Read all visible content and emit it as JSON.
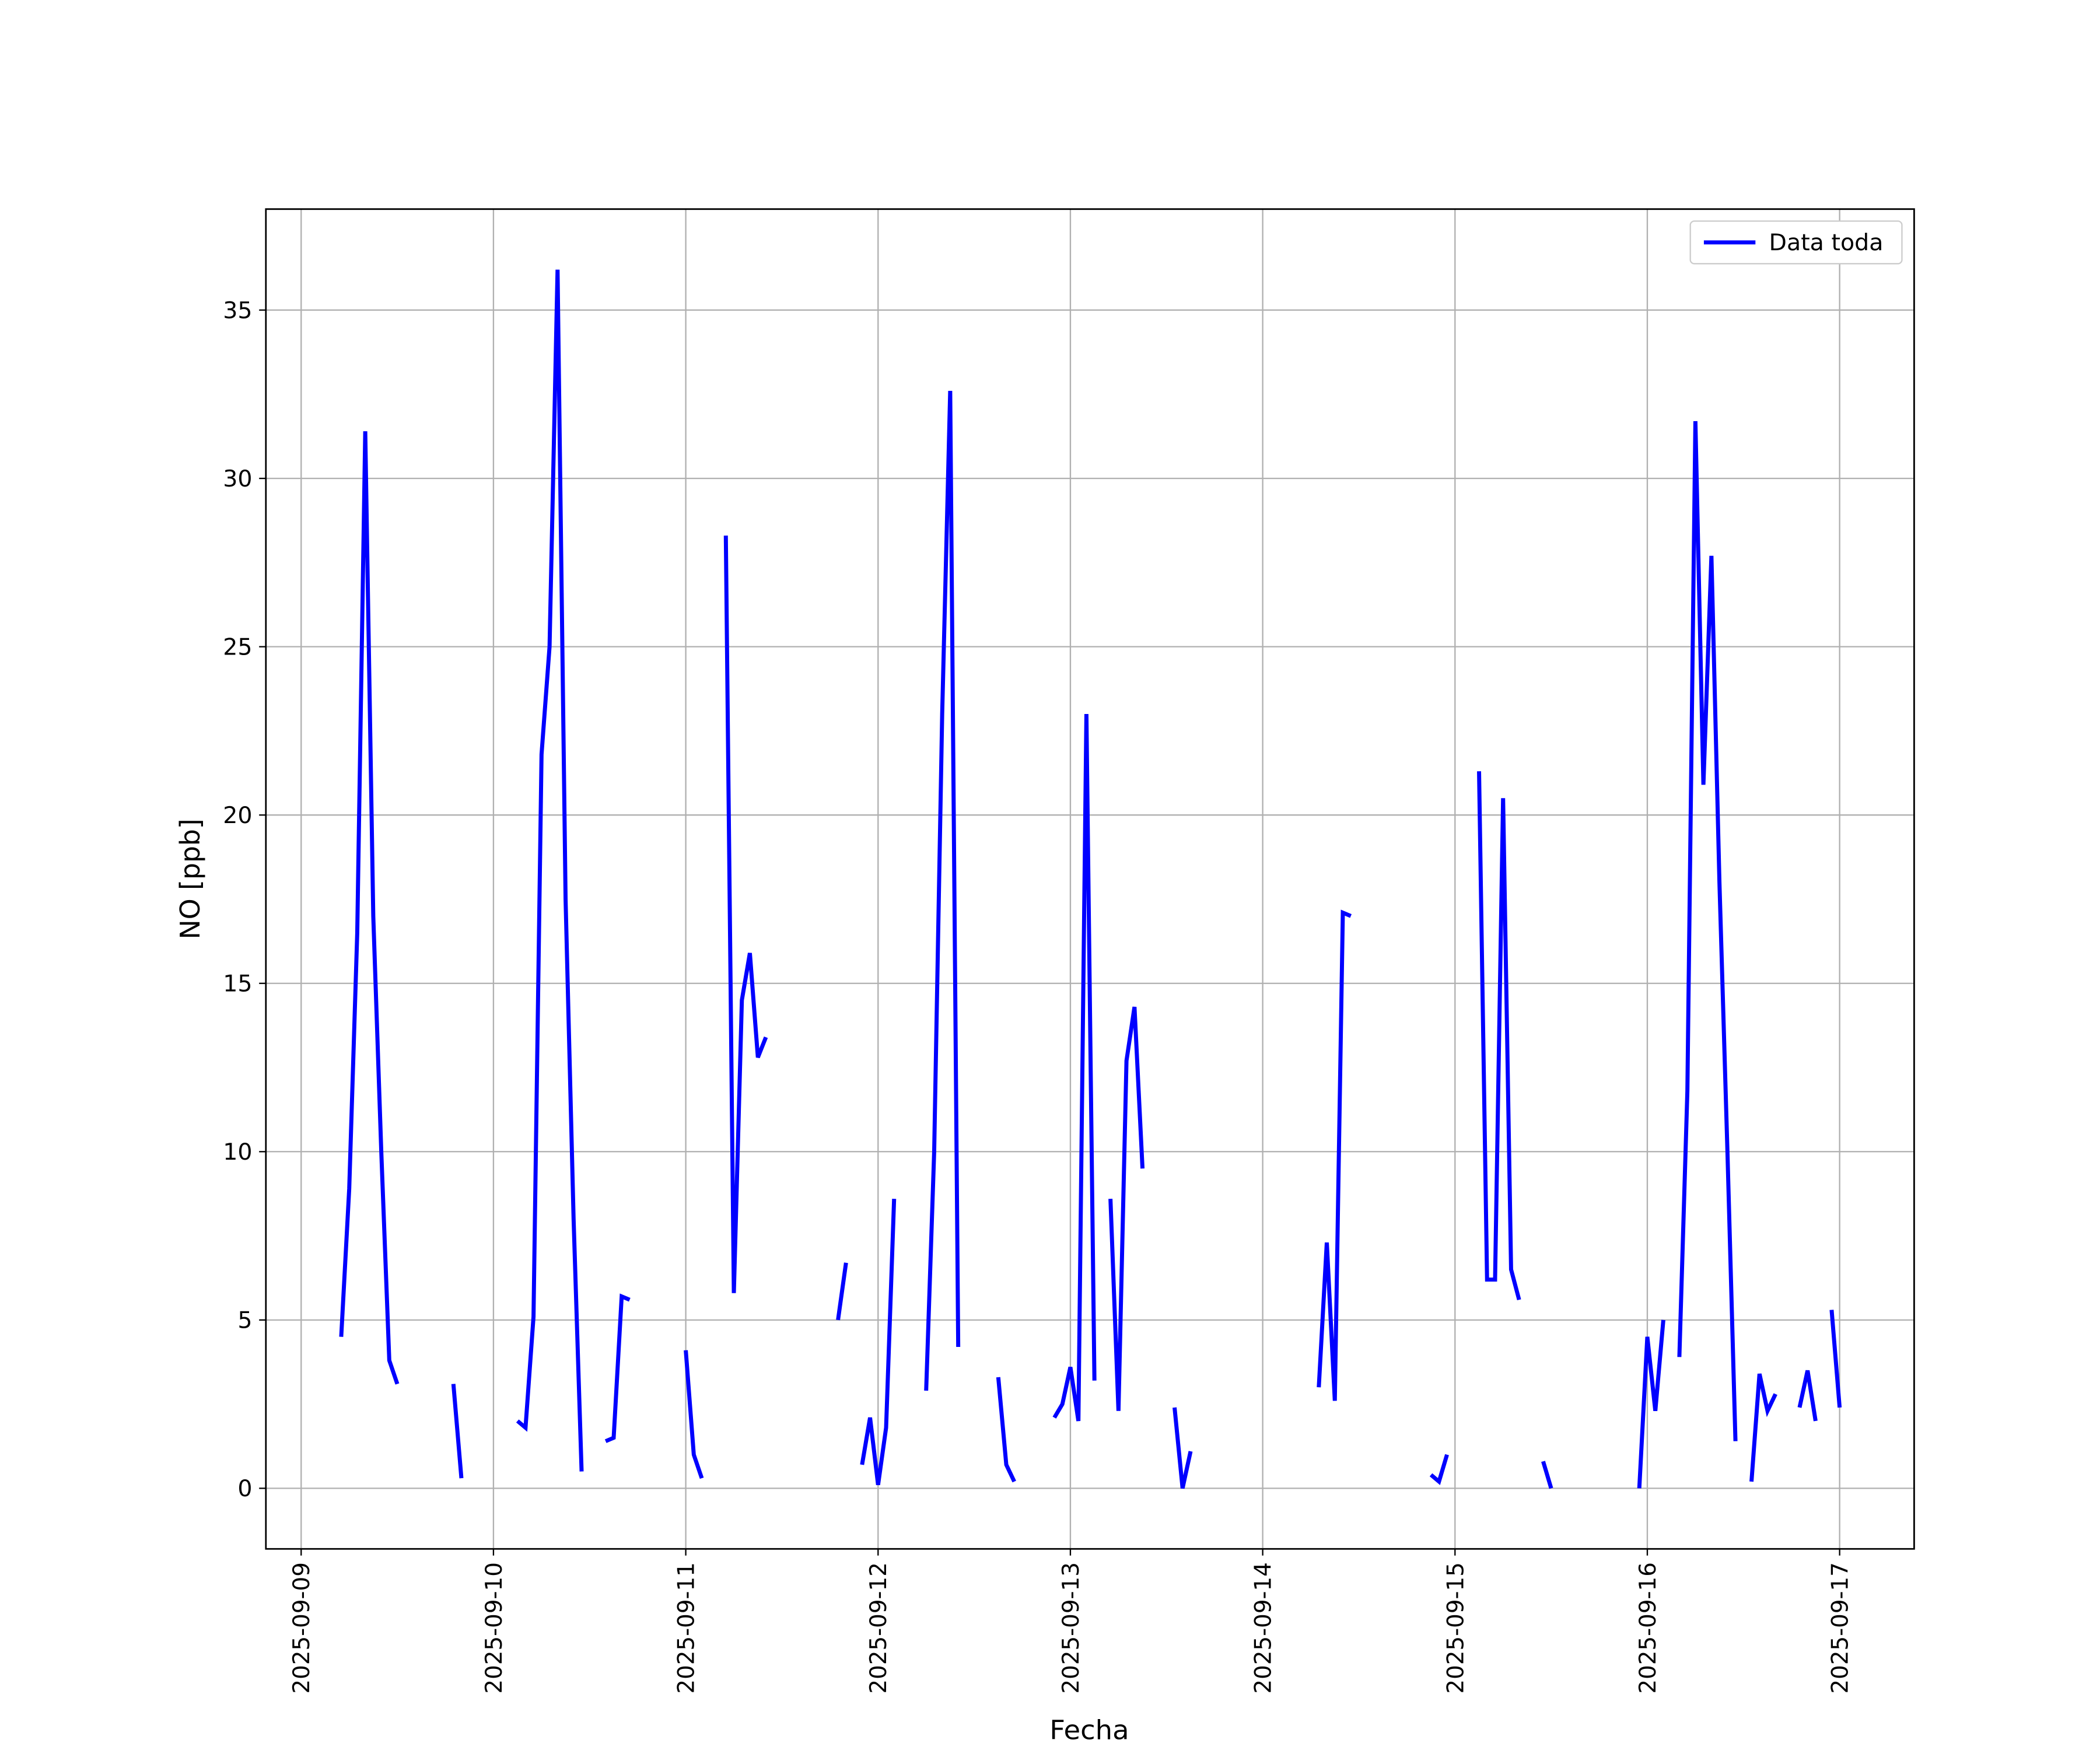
{
  "chart_data": {
    "type": "line",
    "xlabel": "Fecha",
    "ylabel": "NO [ppb]",
    "x": [
      "2025-09-09 05:00",
      "2025-09-09 06:00",
      "2025-09-09 07:00",
      "2025-09-09 08:00",
      "2025-09-09 09:00",
      "2025-09-09 10:00",
      "2025-09-09 11:00",
      "2025-09-09 12:00",
      "2025-09-09 13:00",
      "2025-09-09 19:00",
      "2025-09-09 20:00",
      "2025-09-09 21:00",
      "2025-09-10 03:00",
      "2025-09-10 04:00",
      "2025-09-10 05:00",
      "2025-09-10 06:00",
      "2025-09-10 07:00",
      "2025-09-10 08:00",
      "2025-09-10 09:00",
      "2025-09-10 10:00",
      "2025-09-10 11:00",
      "2025-09-10 12:00",
      "2025-09-10 14:00",
      "2025-09-10 15:00",
      "2025-09-10 16:00",
      "2025-09-10 17:00",
      "2025-09-10 18:00",
      "2025-09-11 00:00",
      "2025-09-11 01:00",
      "2025-09-11 02:00",
      "2025-09-11 03:00",
      "2025-09-11 05:00",
      "2025-09-11 06:00",
      "2025-09-11 07:00",
      "2025-09-11 08:00",
      "2025-09-11 09:00",
      "2025-09-11 10:00",
      "2025-09-11 11:00",
      "2025-09-11 19:00",
      "2025-09-11 20:00",
      "2025-09-11 21:00",
      "2025-09-11 22:00",
      "2025-09-11 23:00",
      "2025-09-12 00:00",
      "2025-09-12 01:00",
      "2025-09-12 02:00",
      "2025-09-12 03:00",
      "2025-09-12 06:00",
      "2025-09-12 07:00",
      "2025-09-12 08:00",
      "2025-09-12 09:00",
      "2025-09-12 10:00",
      "2025-09-12 11:00",
      "2025-09-12 15:00",
      "2025-09-12 16:00",
      "2025-09-12 17:00",
      "2025-09-12 18:00",
      "2025-09-12 22:00",
      "2025-09-12 23:00",
      "2025-09-13 00:00",
      "2025-09-13 01:00",
      "2025-09-13 02:00",
      "2025-09-13 03:00",
      "2025-09-13 04:00",
      "2025-09-13 05:00",
      "2025-09-13 06:00",
      "2025-09-13 07:00",
      "2025-09-13 08:00",
      "2025-09-13 09:00",
      "2025-09-13 10:00",
      "2025-09-13 13:00",
      "2025-09-13 14:00",
      "2025-09-13 15:00",
      "2025-09-13 16:00",
      "2025-09-14 07:00",
      "2025-09-14 08:00",
      "2025-09-14 09:00",
      "2025-09-14 10:00",
      "2025-09-14 11:00",
      "2025-09-14 12:00",
      "2025-09-14 21:00",
      "2025-09-14 22:00",
      "2025-09-14 23:00",
      "2025-09-15 00:00",
      "2025-09-15 03:00",
      "2025-09-15 04:00",
      "2025-09-15 05:00",
      "2025-09-15 06:00",
      "2025-09-15 07:00",
      "2025-09-15 08:00",
      "2025-09-15 09:00",
      "2025-09-15 11:00",
      "2025-09-15 12:00",
      "2025-09-15 13:00",
      "2025-09-15 23:00",
      "2025-09-16 00:00",
      "2025-09-16 01:00",
      "2025-09-16 02:00",
      "2025-09-16 03:00",
      "2025-09-16 04:00",
      "2025-09-16 05:00",
      "2025-09-16 06:00",
      "2025-09-16 07:00",
      "2025-09-16 08:00",
      "2025-09-16 09:00",
      "2025-09-16 10:00",
      "2025-09-16 11:00",
      "2025-09-16 12:00",
      "2025-09-16 13:00",
      "2025-09-16 14:00",
      "2025-09-16 15:00",
      "2025-09-16 16:00",
      "2025-09-16 17:00",
      "2025-09-16 19:00",
      "2025-09-16 20:00",
      "2025-09-16 21:00",
      "2025-09-16 22:00",
      "2025-09-16 23:00",
      "2025-09-17 00:00"
    ],
    "series": [
      {
        "name": "Data toda",
        "color": "#0000ff",
        "values": [
          4.5,
          8.9,
          16.5,
          31.4,
          17,
          10,
          3.8,
          3.1,
          null,
          3.1,
          0.3,
          null,
          2.0,
          1.8,
          5.1,
          21.8,
          25,
          36.2,
          17.5,
          8,
          0.5,
          null,
          1.4,
          1.5,
          5.7,
          5.6,
          null,
          4.1,
          1.0,
          0.3,
          null,
          28.3,
          5.8,
          14.5,
          15.9,
          12.8,
          13.4,
          null,
          5.0,
          6.7,
          null,
          0.7,
          2.1,
          0.1,
          1.8,
          8.6,
          null,
          2.9,
          10,
          23,
          32.6,
          4.2,
          null,
          3.3,
          0.7,
          0.2,
          null,
          2.1,
          2.5,
          3.6,
          2.0,
          23.0,
          3.2,
          null,
          8.6,
          2.3,
          12.7,
          14.3,
          9.5,
          null,
          2.4,
          0.0,
          1.1,
          null,
          3.0,
          7.3,
          2.6,
          17.1,
          17.0,
          null,
          0.4,
          0.2,
          1.0,
          null,
          21.3,
          6.2,
          6.2,
          20.5,
          6.5,
          5.6,
          null,
          0.8,
          0.0,
          null,
          0.0,
          4.5,
          2.3,
          5.0,
          null,
          3.9,
          11.8,
          31.7,
          20.9,
          27.7,
          18,
          10,
          1.4,
          null,
          0.2,
          3.4,
          2.3,
          2.8,
          null,
          2.4,
          3.5,
          2.0,
          null,
          5.3,
          2.4
        ]
      }
    ],
    "xlim": [
      "2025-09-08 19:36",
      "2025-09-17 09:18"
    ],
    "xticks": [
      "2025-09-09",
      "2025-09-10",
      "2025-09-11",
      "2025-09-12",
      "2025-09-13",
      "2025-09-14",
      "2025-09-15",
      "2025-09-16",
      "2025-09-17"
    ],
    "ylim": [
      -1.8,
      38.0
    ],
    "yticks": [
      0,
      5,
      10,
      15,
      20,
      25,
      30,
      35
    ],
    "grid": true,
    "legend": "upper right"
  }
}
